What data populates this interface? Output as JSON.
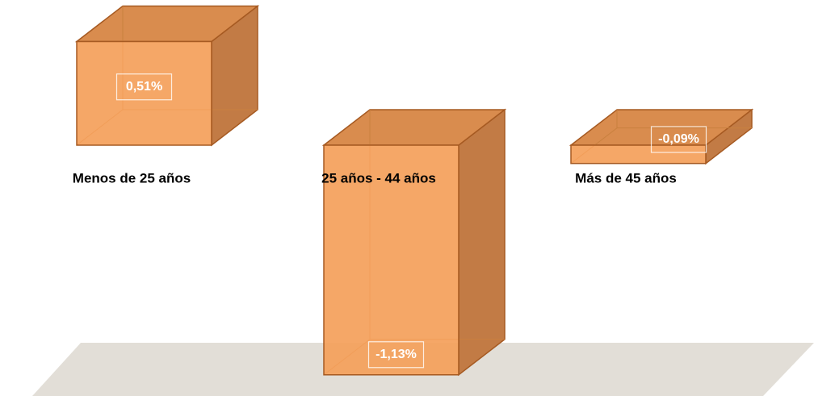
{
  "chart_data": {
    "type": "bar3d",
    "categories": [
      "Menos de 25 años",
      "25 años - 44 años",
      "Más de 45 años"
    ],
    "values": [
      0.51,
      -1.13,
      -0.09
    ],
    "value_labels": [
      "0,51%",
      "-1,13%",
      "-0,09%"
    ],
    "color": "#f4a05a"
  }
}
